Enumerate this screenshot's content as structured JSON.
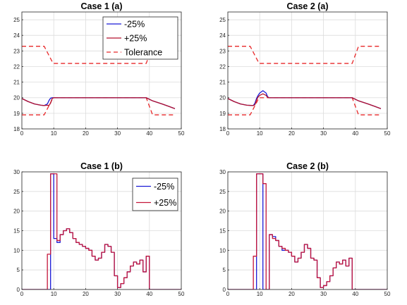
{
  "chart_data": [
    {
      "id": "c1a",
      "type": "line",
      "title": "Case 1 (a)",
      "xlim": [
        0,
        50
      ],
      "ylim": [
        18,
        25.5
      ],
      "xticks": [
        0,
        10,
        20,
        30,
        40,
        50
      ],
      "yticks": [
        18,
        19,
        20,
        21,
        22,
        23,
        24,
        25
      ],
      "grid": true,
      "legend": {
        "placement": "top-right",
        "entries": [
          "-25%",
          "+25%",
          "Tolerance"
        ]
      },
      "series": [
        {
          "name": "Tolerance",
          "color": "#e8292a",
          "style": "dashed",
          "x": [
            0,
            7,
            9.8,
            39,
            41,
            48
          ],
          "y": [
            23.3,
            23.3,
            22.2,
            22.2,
            23.3,
            23.3
          ]
        },
        {
          "name": "Tolerance",
          "color": "#e8292a",
          "style": "dashed",
          "legend": false,
          "x": [
            0,
            7,
            9.8,
            39,
            41,
            48
          ],
          "y": [
            18.9,
            18.9,
            20,
            20,
            18.9,
            18.9
          ]
        },
        {
          "name": "-25%",
          "color": "#1a1ad6",
          "style": "solid",
          "x": [
            0,
            2,
            4,
            6,
            7,
            8,
            8.5,
            9,
            9.5,
            10,
            39,
            41,
            44,
            46,
            48
          ],
          "y": [
            19.95,
            19.75,
            19.6,
            19.52,
            19.5,
            19.6,
            19.82,
            19.97,
            20,
            20,
            20,
            19.8,
            19.6,
            19.45,
            19.3
          ]
        },
        {
          "name": "+25%",
          "color": "#b3122e",
          "style": "solid",
          "x": [
            0,
            2,
            4,
            6,
            7,
            8,
            8.5,
            9,
            9.5,
            10,
            39,
            41,
            44,
            46,
            48
          ],
          "y": [
            19.95,
            19.75,
            19.6,
            19.52,
            19.5,
            19.52,
            19.5,
            19.65,
            19.95,
            20,
            20,
            19.8,
            19.6,
            19.45,
            19.3
          ]
        }
      ]
    },
    {
      "id": "c2a",
      "type": "line",
      "title": "Case 2 (a)",
      "xlim": [
        0,
        50
      ],
      "ylim": [
        18,
        25.5
      ],
      "xticks": [
        0,
        10,
        20,
        30,
        40,
        50
      ],
      "yticks": [
        18,
        19,
        20,
        21,
        22,
        23,
        24,
        25
      ],
      "grid": true,
      "series": [
        {
          "name": "Tolerance",
          "color": "#e8292a",
          "style": "dashed",
          "x": [
            0,
            7,
            9.8,
            39,
            41,
            48
          ],
          "y": [
            23.3,
            23.3,
            22.2,
            22.2,
            23.3,
            23.3
          ]
        },
        {
          "name": "Tolerance",
          "color": "#e8292a",
          "style": "dashed",
          "x": [
            0,
            7,
            9.8,
            39,
            41,
            48
          ],
          "y": [
            18.9,
            18.9,
            20,
            20,
            18.9,
            18.9
          ]
        },
        {
          "name": "-25%",
          "color": "#1a1ad6",
          "style": "solid",
          "x": [
            0,
            2,
            4,
            6,
            8,
            8.5,
            9,
            9.5,
            10,
            11,
            12,
            12.5,
            13,
            39,
            41,
            44,
            46,
            48
          ],
          "y": [
            19.95,
            19.75,
            19.6,
            19.52,
            19.5,
            19.65,
            19.95,
            20.15,
            20.3,
            20.45,
            20.3,
            20.05,
            20,
            20,
            19.8,
            19.6,
            19.45,
            19.3
          ]
        },
        {
          "name": "+25%",
          "color": "#b3122e",
          "style": "solid",
          "x": [
            0,
            2,
            4,
            6,
            8,
            8.5,
            9,
            9.5,
            10,
            11,
            12,
            12.5,
            13,
            39,
            41,
            44,
            46,
            48
          ],
          "y": [
            19.95,
            19.75,
            19.6,
            19.52,
            19.5,
            19.55,
            19.85,
            20.05,
            20.15,
            20.25,
            20.15,
            20.02,
            20,
            20,
            19.8,
            19.6,
            19.45,
            19.3
          ]
        }
      ]
    },
    {
      "id": "c1b",
      "type": "line",
      "title": "Case 1 (b)",
      "xlim": [
        0,
        50
      ],
      "ylim": [
        0,
        30
      ],
      "xticks": [
        0,
        10,
        20,
        30,
        40,
        50
      ],
      "yticks": [
        0,
        5,
        10,
        15,
        20,
        25,
        30
      ],
      "grid": true,
      "legend": {
        "placement": "top-right",
        "entries": [
          "-25%",
          "+25%"
        ]
      },
      "series": [
        {
          "name": "-25%",
          "color": "#1a1ad6",
          "style": "step",
          "x": [
            0,
            8,
            9,
            10,
            11,
            12,
            13,
            14,
            15,
            16,
            17,
            18,
            19,
            20,
            21,
            22,
            23,
            24,
            25,
            26,
            27,
            28,
            29,
            30,
            31,
            32,
            33,
            34,
            35,
            36,
            37,
            38,
            39,
            40,
            50
          ],
          "y": [
            0,
            0,
            29.5,
            13,
            12,
            14,
            15,
            15.5,
            14.5,
            13,
            12,
            11.5,
            11,
            10.5,
            10,
            8.5,
            7.5,
            8,
            9.5,
            11.5,
            11,
            9.5,
            3.5,
            0.5,
            1.5,
            3,
            4.5,
            6,
            7,
            6.5,
            7.5,
            4.5,
            8.5,
            0,
            0
          ]
        },
        {
          "name": "+25%",
          "color": "#c4163a",
          "style": "step",
          "x": [
            0,
            8,
            9,
            10,
            11,
            12,
            13,
            14,
            15,
            16,
            17,
            18,
            19,
            20,
            21,
            22,
            23,
            24,
            25,
            26,
            27,
            28,
            29,
            30,
            31,
            32,
            33,
            34,
            35,
            36,
            37,
            38,
            39,
            40,
            50
          ],
          "y": [
            0,
            9,
            29.5,
            29.5,
            12.5,
            14,
            15,
            15.5,
            14.5,
            13,
            12,
            11.5,
            11,
            10.5,
            10,
            8.5,
            7.5,
            8,
            9.5,
            11.5,
            11,
            9.5,
            3.5,
            0.5,
            1.5,
            3,
            4.5,
            6,
            7,
            6.5,
            7.5,
            4.5,
            8.5,
            0,
            0
          ]
        }
      ]
    },
    {
      "id": "c2b",
      "type": "line",
      "title": "Case 2 (b)",
      "xlim": [
        0,
        50
      ],
      "ylim": [
        0,
        30
      ],
      "xticks": [
        0,
        10,
        20,
        30,
        40,
        50
      ],
      "yticks": [
        0,
        5,
        10,
        15,
        20,
        25,
        30
      ],
      "grid": true,
      "series": [
        {
          "name": "-25%",
          "color": "#1a1ad6",
          "style": "step",
          "x": [
            0,
            8,
            9,
            10,
            11,
            12,
            13,
            14,
            15,
            16,
            17,
            18,
            19,
            20,
            21,
            22,
            23,
            24,
            25,
            26,
            27,
            28,
            29,
            30,
            31,
            32,
            33,
            34,
            35,
            36,
            37,
            38,
            39,
            40,
            50
          ],
          "y": [
            0,
            0,
            29.5,
            29.5,
            0,
            0,
            14,
            13.5,
            12.5,
            11,
            10,
            10,
            9.5,
            8.5,
            7,
            8,
            9.5,
            11.5,
            10.5,
            8,
            7.5,
            3,
            0.5,
            1,
            2,
            3.5,
            5.5,
            7,
            6.5,
            7.5,
            6,
            8,
            0,
            0,
            0
          ]
        },
        {
          "name": "+25%",
          "color": "#c4163a",
          "style": "step",
          "x": [
            0,
            8,
            9,
            10,
            11,
            12,
            13,
            14,
            15,
            16,
            17,
            18,
            19,
            20,
            21,
            22,
            23,
            24,
            25,
            26,
            27,
            28,
            29,
            30,
            31,
            32,
            33,
            34,
            35,
            36,
            37,
            38,
            39,
            40,
            50
          ],
          "y": [
            0,
            8.5,
            29.5,
            29.5,
            27,
            0,
            14,
            13,
            12.5,
            11,
            10.5,
            10,
            9.5,
            8.5,
            7,
            8,
            9.5,
            11.5,
            10.5,
            8,
            7.5,
            3,
            0.5,
            1,
            2,
            3.5,
            5.5,
            7,
            6.5,
            7.5,
            6,
            8,
            0,
            0,
            0
          ]
        }
      ]
    }
  ]
}
